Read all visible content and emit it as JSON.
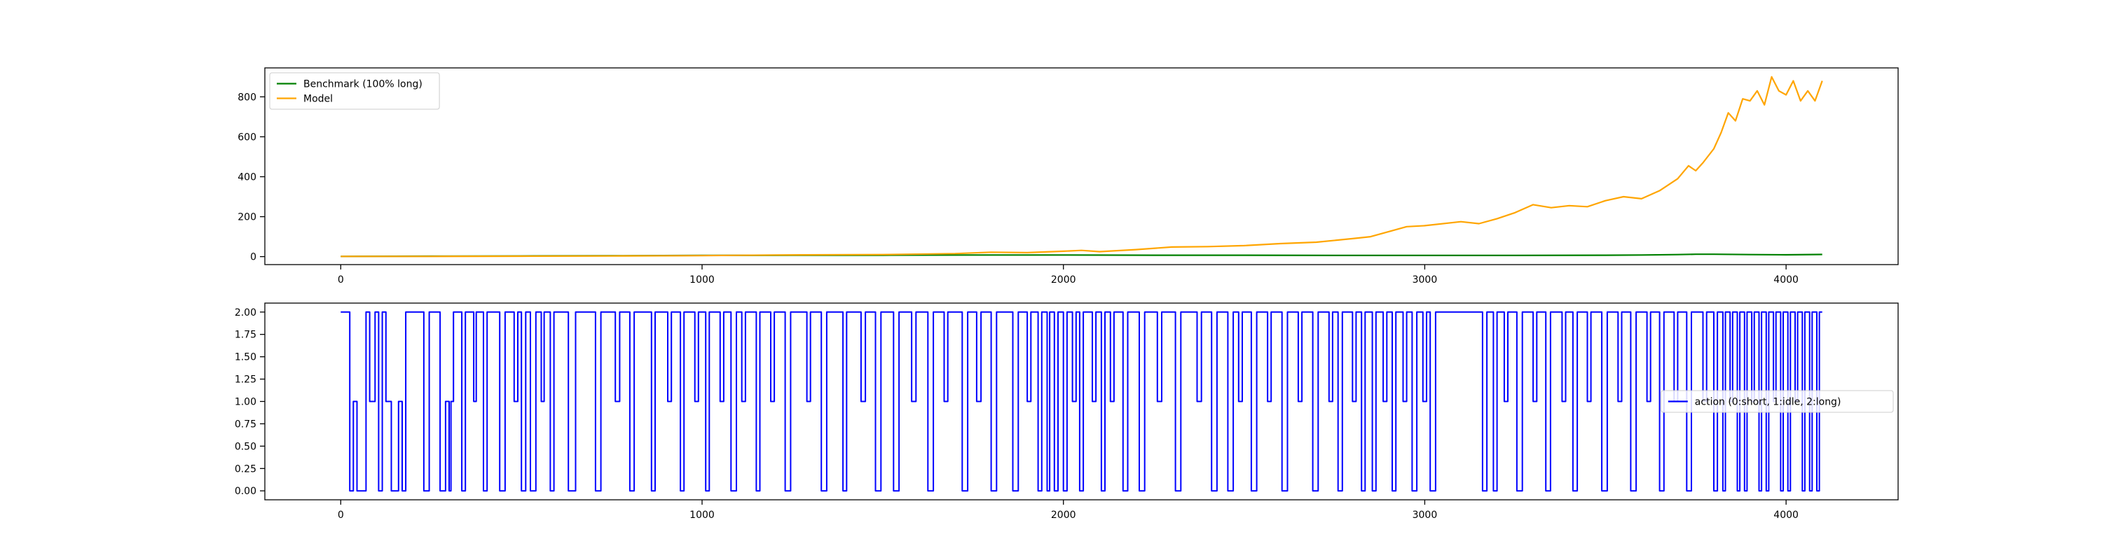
{
  "chart_data": [
    {
      "type": "line",
      "title": "",
      "xlabel": "",
      "ylabel": "",
      "xlim": [
        -210,
        4310
      ],
      "ylim": [
        -40,
        945
      ],
      "x_ticks": [
        0,
        1000,
        2000,
        3000,
        4000
      ],
      "y_ticks": [
        0,
        200,
        400,
        600,
        800
      ],
      "legend_position": "top-left",
      "grid": false,
      "series": [
        {
          "name": "Benchmark (100% long)",
          "color": "#008000",
          "x": [
            0,
            250,
            500,
            750,
            1000,
            1250,
            1500,
            1750,
            2000,
            2250,
            2500,
            2750,
            3000,
            3250,
            3500,
            3600,
            3700,
            3750,
            3800,
            3900,
            4000,
            4100
          ],
          "y": [
            1,
            2,
            3,
            4,
            6,
            7,
            7,
            8,
            8,
            7,
            7,
            6,
            6,
            6,
            7,
            8,
            10,
            12,
            12,
            10,
            9,
            11
          ]
        },
        {
          "name": "Model",
          "color": "#ffa500",
          "x": [
            0,
            250,
            500,
            750,
            1000,
            1200,
            1500,
            1700,
            1800,
            1900,
            2000,
            2050,
            2100,
            2200,
            2300,
            2400,
            2500,
            2600,
            2700,
            2800,
            2850,
            2900,
            2950,
            3000,
            3100,
            3150,
            3200,
            3250,
            3300,
            3350,
            3400,
            3450,
            3500,
            3550,
            3600,
            3650,
            3700,
            3730,
            3750,
            3770,
            3800,
            3820,
            3840,
            3860,
            3880,
            3900,
            3920,
            3940,
            3960,
            3980,
            4000,
            4020,
            4040,
            4060,
            4080,
            4100
          ],
          "y": [
            1,
            1,
            2,
            3,
            5,
            8,
            10,
            15,
            22,
            20,
            27,
            31,
            25,
            35,
            48,
            50,
            55,
            65,
            72,
            90,
            100,
            125,
            150,
            155,
            175,
            165,
            190,
            220,
            260,
            245,
            255,
            250,
            280,
            300,
            290,
            330,
            390,
            455,
            430,
            470,
            540,
            620,
            720,
            680,
            790,
            780,
            830,
            760,
            900,
            830,
            810,
            880,
            780,
            830,
            780,
            880
          ]
        }
      ]
    },
    {
      "type": "line",
      "title": "",
      "xlabel": "",
      "ylabel": "",
      "xlim": [
        -210,
        4310
      ],
      "ylim": [
        -0.1,
        2.1
      ],
      "x_ticks": [
        0,
        1000,
        2000,
        3000,
        4000
      ],
      "y_ticks": [
        "0.00",
        "0.25",
        "0.50",
        "0.75",
        "1.00",
        "1.25",
        "1.50",
        "1.75",
        "2.00"
      ],
      "legend_position": "center-right",
      "grid": false,
      "series": [
        {
          "name": "action (0:short, 1:idle, 2:long)",
          "color": "#0000ff",
          "step": "post",
          "x_end": 4100,
          "segments": [
            [
              0,
              2
            ],
            [
              25,
              0
            ],
            [
              35,
              1
            ],
            [
              45,
              0
            ],
            [
              70,
              2
            ],
            [
              80,
              1
            ],
            [
              95,
              2
            ],
            [
              105,
              0
            ],
            [
              115,
              2
            ],
            [
              125,
              1
            ],
            [
              140,
              0
            ],
            [
              160,
              1
            ],
            [
              170,
              0
            ],
            [
              180,
              2
            ],
            [
              230,
              0
            ],
            [
              245,
              2
            ],
            [
              275,
              0
            ],
            [
              290,
              1
            ],
            [
              300,
              0
            ],
            [
              305,
              1
            ],
            [
              312,
              2
            ],
            [
              335,
              0
            ],
            [
              345,
              2
            ],
            [
              368,
              1
            ],
            [
              375,
              2
            ],
            [
              395,
              0
            ],
            [
              405,
              2
            ],
            [
              440,
              0
            ],
            [
              455,
              2
            ],
            [
              480,
              1
            ],
            [
              490,
              2
            ],
            [
              500,
              0
            ],
            [
              512,
              2
            ],
            [
              525,
              0
            ],
            [
              540,
              2
            ],
            [
              555,
              1
            ],
            [
              563,
              2
            ],
            [
              580,
              0
            ],
            [
              590,
              2
            ],
            [
              630,
              0
            ],
            [
              650,
              2
            ],
            [
              705,
              0
            ],
            [
              720,
              2
            ],
            [
              760,
              1
            ],
            [
              772,
              2
            ],
            [
              800,
              0
            ],
            [
              812,
              2
            ],
            [
              860,
              0
            ],
            [
              870,
              2
            ],
            [
              905,
              1
            ],
            [
              915,
              2
            ],
            [
              940,
              0
            ],
            [
              950,
              2
            ],
            [
              980,
              1
            ],
            [
              990,
              2
            ],
            [
              1010,
              0
            ],
            [
              1020,
              2
            ],
            [
              1050,
              1
            ],
            [
              1060,
              2
            ],
            [
              1080,
              0
            ],
            [
              1095,
              2
            ],
            [
              1110,
              1
            ],
            [
              1120,
              2
            ],
            [
              1150,
              0
            ],
            [
              1160,
              2
            ],
            [
              1190,
              1
            ],
            [
              1200,
              2
            ],
            [
              1230,
              0
            ],
            [
              1245,
              2
            ],
            [
              1290,
              1
            ],
            [
              1300,
              2
            ],
            [
              1330,
              0
            ],
            [
              1345,
              2
            ],
            [
              1390,
              0
            ],
            [
              1400,
              2
            ],
            [
              1440,
              1
            ],
            [
              1452,
              2
            ],
            [
              1480,
              0
            ],
            [
              1495,
              2
            ],
            [
              1530,
              0
            ],
            [
              1545,
              2
            ],
            [
              1580,
              1
            ],
            [
              1592,
              2
            ],
            [
              1625,
              0
            ],
            [
              1640,
              2
            ],
            [
              1670,
              1
            ],
            [
              1680,
              2
            ],
            [
              1720,
              0
            ],
            [
              1735,
              2
            ],
            [
              1760,
              1
            ],
            [
              1772,
              2
            ],
            [
              1800,
              0
            ],
            [
              1815,
              2
            ],
            [
              1860,
              0
            ],
            [
              1875,
              2
            ],
            [
              1900,
              1
            ],
            [
              1910,
              2
            ],
            [
              1930,
              0
            ],
            [
              1940,
              2
            ],
            [
              1955,
              0
            ],
            [
              1962,
              2
            ],
            [
              1975,
              0
            ],
            [
              1985,
              2
            ],
            [
              2000,
              0
            ],
            [
              2010,
              2
            ],
            [
              2025,
              1
            ],
            [
              2035,
              2
            ],
            [
              2045,
              0
            ],
            [
              2055,
              2
            ],
            [
              2080,
              1
            ],
            [
              2090,
              2
            ],
            [
              2105,
              0
            ],
            [
              2115,
              2
            ],
            [
              2130,
              1
            ],
            [
              2140,
              2
            ],
            [
              2165,
              0
            ],
            [
              2178,
              2
            ],
            [
              2210,
              0
            ],
            [
              2225,
              2
            ],
            [
              2260,
              1
            ],
            [
              2272,
              2
            ],
            [
              2310,
              0
            ],
            [
              2325,
              2
            ],
            [
              2370,
              1
            ],
            [
              2382,
              2
            ],
            [
              2410,
              0
            ],
            [
              2425,
              2
            ],
            [
              2455,
              0
            ],
            [
              2470,
              2
            ],
            [
              2485,
              1
            ],
            [
              2495,
              2
            ],
            [
              2520,
              0
            ],
            [
              2535,
              2
            ],
            [
              2565,
              1
            ],
            [
              2575,
              2
            ],
            [
              2605,
              0
            ],
            [
              2620,
              2
            ],
            [
              2650,
              1
            ],
            [
              2660,
              2
            ],
            [
              2690,
              0
            ],
            [
              2705,
              2
            ],
            [
              2735,
              1
            ],
            [
              2745,
              2
            ],
            [
              2760,
              0
            ],
            [
              2772,
              2
            ],
            [
              2800,
              1
            ],
            [
              2810,
              2
            ],
            [
              2825,
              0
            ],
            [
              2835,
              2
            ],
            [
              2855,
              0
            ],
            [
              2865,
              2
            ],
            [
              2885,
              1
            ],
            [
              2895,
              2
            ],
            [
              2910,
              0
            ],
            [
              2920,
              2
            ],
            [
              2940,
              1
            ],
            [
              2950,
              2
            ],
            [
              2965,
              0
            ],
            [
              2978,
              2
            ],
            [
              2995,
              1
            ],
            [
              3005,
              2
            ],
            [
              3015,
              0
            ],
            [
              3030,
              2
            ],
            [
              3160,
              0
            ],
            [
              3172,
              2
            ],
            [
              3190,
              0
            ],
            [
              3200,
              2
            ],
            [
              3220,
              1
            ],
            [
              3230,
              2
            ],
            [
              3255,
              0
            ],
            [
              3270,
              2
            ],
            [
              3300,
              1
            ],
            [
              3310,
              2
            ],
            [
              3335,
              0
            ],
            [
              3348,
              2
            ],
            [
              3380,
              1
            ],
            [
              3390,
              2
            ],
            [
              3410,
              0
            ],
            [
              3422,
              2
            ],
            [
              3450,
              1
            ],
            [
              3460,
              2
            ],
            [
              3490,
              0
            ],
            [
              3505,
              2
            ],
            [
              3535,
              1
            ],
            [
              3545,
              2
            ],
            [
              3570,
              0
            ],
            [
              3585,
              2
            ],
            [
              3615,
              1
            ],
            [
              3625,
              2
            ],
            [
              3650,
              0
            ],
            [
              3662,
              2
            ],
            [
              3690,
              1
            ],
            [
              3700,
              2
            ],
            [
              3725,
              0
            ],
            [
              3738,
              2
            ],
            [
              3770,
              1
            ],
            [
              3780,
              2
            ],
            [
              3800,
              0
            ],
            [
              3810,
              2
            ],
            [
              3825,
              0
            ],
            [
              3832,
              2
            ],
            [
              3845,
              1
            ],
            [
              3852,
              2
            ],
            [
              3865,
              0
            ],
            [
              3872,
              2
            ],
            [
              3885,
              0
            ],
            [
              3892,
              2
            ],
            [
              3905,
              1
            ],
            [
              3912,
              2
            ],
            [
              3925,
              0
            ],
            [
              3932,
              2
            ],
            [
              3945,
              0
            ],
            [
              3952,
              2
            ],
            [
              3965,
              1
            ],
            [
              3972,
              2
            ],
            [
              3985,
              0
            ],
            [
              3992,
              2
            ],
            [
              4005,
              0
            ],
            [
              4012,
              2
            ],
            [
              4025,
              1
            ],
            [
              4032,
              2
            ],
            [
              4045,
              0
            ],
            [
              4052,
              2
            ],
            [
              4065,
              0
            ],
            [
              4072,
              2
            ],
            [
              4085,
              0
            ],
            [
              4092,
              2
            ]
          ]
        }
      ]
    }
  ]
}
